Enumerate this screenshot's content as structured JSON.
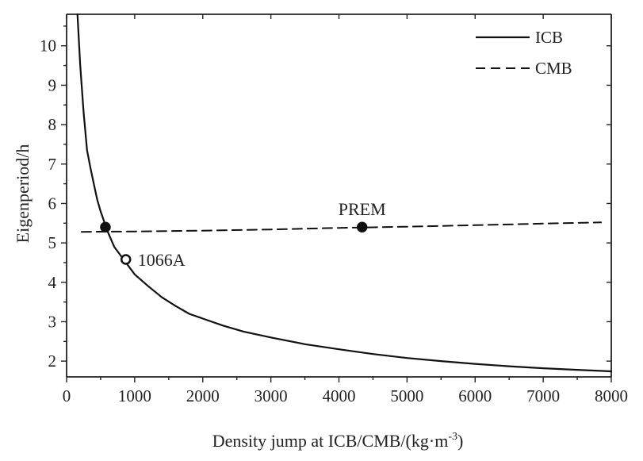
{
  "chart_data": {
    "type": "line",
    "title": "",
    "xlabel": "Density jump at ICB/CMB/(kg·m",
    "xlabel_sup": "-3",
    "xlabel_end": ")",
    "ylabel": "Eigenperiod/h",
    "xlim": [
      0,
      8000
    ],
    "ylim": [
      1.6,
      10.8
    ],
    "grid": false,
    "legend_position": "top-right",
    "x_ticks": [
      0,
      1000,
      2000,
      3000,
      4000,
      5000,
      6000,
      7000,
      8000
    ],
    "x_tick_labels": [
      "0",
      "1000",
      "2000",
      "3000",
      "4000",
      "5000",
      "6000",
      "7000",
      "8000"
    ],
    "y_ticks": [
      2,
      3,
      4,
      5,
      6,
      7,
      8,
      9,
      10
    ],
    "y_tick_labels": [
      "2",
      "3",
      "4",
      "5",
      "6",
      "7",
      "8",
      "9",
      "10"
    ],
    "series": [
      {
        "name": "ICB",
        "style": "solid",
        "color": "#111111",
        "x": [
          160,
          200,
          250,
          300,
          350,
          400,
          450,
          500,
          600,
          700,
          850,
          1000,
          1200,
          1400,
          1600,
          1800,
          2000,
          2300,
          2600,
          3000,
          3500,
          4000,
          4500,
          5000,
          5500,
          6000,
          6500,
          7000,
          7500,
          8000
        ],
        "y": [
          10.8,
          9.5,
          8.3,
          7.35,
          6.9,
          6.5,
          6.1,
          5.8,
          5.3,
          4.9,
          4.55,
          4.2,
          3.9,
          3.62,
          3.4,
          3.2,
          3.08,
          2.9,
          2.75,
          2.6,
          2.43,
          2.3,
          2.18,
          2.08,
          2.0,
          1.93,
          1.87,
          1.82,
          1.78,
          1.74
        ]
      },
      {
        "name": "CMB",
        "style": "dashed",
        "color": "#111111",
        "x": [
          220,
          1000,
          2000,
          3000,
          4000,
          5000,
          6000,
          7000,
          7850
        ],
        "y": [
          5.28,
          5.29,
          5.31,
          5.34,
          5.38,
          5.41,
          5.45,
          5.49,
          5.52
        ]
      }
    ],
    "markers": [
      {
        "label": "",
        "x": 570,
        "y": 5.4,
        "filled": true
      },
      {
        "label": "PREM",
        "x": 4340,
        "y": 5.4,
        "filled": true
      },
      {
        "label": "1066A",
        "x": 870,
        "y": 4.58,
        "filled": false
      }
    ]
  }
}
